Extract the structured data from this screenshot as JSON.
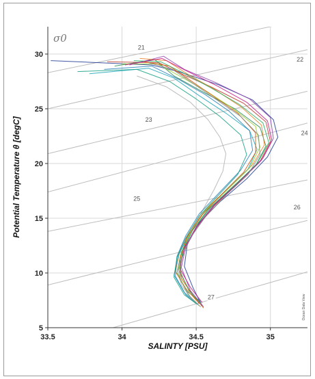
{
  "chart_data": {
    "type": "line",
    "title": "",
    "panel_label": "σ0",
    "xlabel": "SALINTY [PSU]",
    "ylabel": "Potential Temperature θ [degC]",
    "xlim": [
      33.5,
      35.25
    ],
    "ylim": [
      5,
      32.5
    ],
    "x_ticks": [
      33.5,
      34,
      34.5,
      35
    ],
    "x_tick_labels": [
      "33.5",
      "34",
      "34.5",
      "35"
    ],
    "y_ticks": [
      5,
      10,
      15,
      20,
      25,
      30
    ],
    "y_tick_labels": [
      "5",
      "10",
      "15",
      "20",
      "25",
      "30"
    ],
    "grid": true,
    "watermark": "Ocean Data View",
    "density_contours": [
      {
        "label": "21",
        "points": [
          [
            33.5,
            28.3
          ],
          [
            35.25,
            33.2
          ]
        ],
        "label_pos": [
          34.13,
          30.4
        ]
      },
      {
        "label": "22",
        "points": [
          [
            33.5,
            25.0
          ],
          [
            35.25,
            30.4
          ]
        ],
        "label_pos": [
          35.2,
          29.3
        ]
      },
      {
        "label": "23",
        "points": [
          [
            33.5,
            20.9
          ],
          [
            35.25,
            26.6
          ]
        ],
        "label_pos": [
          34.18,
          23.8
        ]
      },
      {
        "label": "24",
        "points": [
          [
            33.5,
            17.4
          ],
          [
            35.25,
            23.7
          ]
        ],
        "label_pos": [
          35.23,
          22.6
        ]
      },
      {
        "label": "25",
        "points": [
          [
            33.5,
            13.8
          ],
          [
            35.25,
            18.5
          ]
        ],
        "label_pos": [
          34.1,
          16.6
        ]
      },
      {
        "label": "26",
        "points": [
          [
            33.5,
            8.9
          ],
          [
            35.25,
            14.8
          ]
        ],
        "label_pos": [
          35.18,
          15.8
        ]
      },
      {
        "label": "27",
        "points": [
          [
            33.94,
            5.0
          ],
          [
            35.25,
            10.1
          ]
        ],
        "label_pos": [
          34.6,
          7.6
        ]
      }
    ],
    "series": [
      {
        "color": "#1f3a93",
        "values": [
          [
            33.52,
            29.4
          ],
          [
            34.2,
            29.0
          ],
          [
            34.38,
            28.4
          ],
          [
            34.65,
            27.2
          ],
          [
            34.88,
            25.8
          ],
          [
            35.02,
            24.0
          ],
          [
            35.05,
            22.4
          ],
          [
            34.98,
            20.6
          ],
          [
            34.84,
            18.6
          ],
          [
            34.66,
            16.5
          ],
          [
            34.52,
            14.6
          ],
          [
            34.44,
            12.6
          ],
          [
            34.42,
            10.6
          ],
          [
            34.48,
            8.6
          ],
          [
            34.54,
            7.0
          ]
        ]
      },
      {
        "color": "#c0392b",
        "values": [
          [
            33.9,
            29.3
          ],
          [
            34.25,
            29.2
          ],
          [
            34.4,
            28.2
          ],
          [
            34.6,
            27.0
          ],
          [
            34.82,
            25.5
          ],
          [
            34.97,
            23.8
          ],
          [
            35.0,
            22.0
          ],
          [
            34.93,
            20.2
          ],
          [
            34.78,
            18.2
          ],
          [
            34.62,
            16.1
          ],
          [
            34.5,
            14.1
          ],
          [
            34.42,
            12.2
          ],
          [
            34.38,
            10.3
          ],
          [
            34.45,
            8.5
          ],
          [
            34.52,
            7.2
          ]
        ]
      },
      {
        "color": "#2e8b57",
        "values": [
          [
            33.95,
            28.9
          ],
          [
            34.22,
            29.5
          ],
          [
            34.35,
            28.0
          ],
          [
            34.55,
            26.5
          ],
          [
            34.76,
            25.0
          ],
          [
            34.93,
            23.3
          ],
          [
            34.97,
            21.6
          ],
          [
            34.9,
            19.8
          ],
          [
            34.74,
            17.8
          ],
          [
            34.58,
            15.8
          ],
          [
            34.47,
            13.8
          ],
          [
            34.4,
            11.9
          ],
          [
            34.37,
            10.0
          ],
          [
            34.44,
            8.3
          ],
          [
            34.53,
            7.4
          ]
        ]
      },
      {
        "color": "#8e44ad",
        "values": [
          [
            34.05,
            29.0
          ],
          [
            34.28,
            29.8
          ],
          [
            34.42,
            28.6
          ],
          [
            34.63,
            27.4
          ],
          [
            34.86,
            25.9
          ],
          [
            35.0,
            24.2
          ],
          [
            35.02,
            22.3
          ],
          [
            34.95,
            20.5
          ],
          [
            34.8,
            18.5
          ],
          [
            34.63,
            16.3
          ],
          [
            34.51,
            14.3
          ],
          [
            34.43,
            12.4
          ],
          [
            34.4,
            10.5
          ],
          [
            34.46,
            8.4
          ],
          [
            34.55,
            6.9
          ]
        ]
      },
      {
        "color": "#e67e22",
        "values": [
          [
            34.12,
            29.6
          ],
          [
            34.3,
            29.4
          ],
          [
            34.45,
            28.1
          ],
          [
            34.62,
            26.8
          ],
          [
            34.8,
            25.2
          ],
          [
            34.94,
            23.5
          ],
          [
            34.96,
            21.7
          ],
          [
            34.88,
            19.9
          ],
          [
            34.73,
            17.9
          ],
          [
            34.57,
            15.9
          ],
          [
            34.46,
            13.9
          ],
          [
            34.39,
            12.0
          ],
          [
            34.36,
            10.1
          ],
          [
            34.43,
            8.6
          ],
          [
            34.5,
            7.5
          ]
        ]
      },
      {
        "color": "#17a2b8",
        "values": [
          [
            33.78,
            28.2
          ],
          [
            34.18,
            28.7
          ],
          [
            34.35,
            27.8
          ],
          [
            34.52,
            26.2
          ],
          [
            34.7,
            24.6
          ],
          [
            34.86,
            23.0
          ],
          [
            34.91,
            21.3
          ],
          [
            34.85,
            19.5
          ],
          [
            34.7,
            17.5
          ],
          [
            34.55,
            15.5
          ],
          [
            34.45,
            13.5
          ],
          [
            34.38,
            11.6
          ],
          [
            34.35,
            9.8
          ],
          [
            34.42,
            8.2
          ],
          [
            34.5,
            7.3
          ]
        ]
      },
      {
        "color": "#9acd32",
        "values": [
          [
            34.0,
            29.1
          ],
          [
            34.24,
            29.1
          ],
          [
            34.4,
            27.9
          ],
          [
            34.57,
            26.6
          ],
          [
            34.74,
            25.1
          ],
          [
            34.9,
            23.4
          ],
          [
            34.93,
            21.5
          ],
          [
            34.86,
            19.6
          ],
          [
            34.71,
            17.6
          ],
          [
            34.56,
            15.7
          ],
          [
            34.46,
            13.7
          ],
          [
            34.4,
            11.8
          ],
          [
            34.38,
            9.9
          ],
          [
            34.44,
            8.1
          ],
          [
            34.52,
            7.0
          ]
        ]
      },
      {
        "color": "#b0b0b0",
        "values": [
          [
            34.1,
            28.0
          ],
          [
            34.3,
            27.0
          ],
          [
            34.46,
            25.6
          ],
          [
            34.58,
            24.0
          ],
          [
            34.66,
            22.4
          ],
          [
            34.7,
            20.9
          ],
          [
            34.68,
            19.3
          ],
          [
            34.62,
            17.6
          ],
          [
            34.55,
            15.9
          ],
          [
            34.48,
            14.1
          ],
          [
            34.42,
            12.3
          ],
          [
            34.38,
            10.5
          ],
          [
            34.4,
            8.9
          ],
          [
            34.47,
            7.6
          ]
        ]
      },
      {
        "color": "#d35400",
        "values": [
          [
            34.15,
            29.3
          ],
          [
            34.32,
            28.9
          ],
          [
            34.46,
            27.6
          ],
          [
            34.62,
            26.1
          ],
          [
            34.78,
            24.6
          ],
          [
            34.9,
            22.8
          ],
          [
            34.9,
            21.0
          ],
          [
            34.82,
            19.2
          ],
          [
            34.68,
            17.3
          ],
          [
            34.54,
            15.3
          ],
          [
            34.44,
            13.3
          ],
          [
            34.39,
            11.3
          ],
          [
            34.4,
            9.5
          ],
          [
            34.48,
            7.9
          ],
          [
            34.55,
            6.8
          ]
        ]
      },
      {
        "color": "#2980b9",
        "values": [
          [
            33.88,
            28.6
          ],
          [
            34.2,
            28.9
          ],
          [
            34.38,
            27.7
          ],
          [
            34.56,
            26.3
          ],
          [
            34.72,
            24.8
          ],
          [
            34.86,
            23.0
          ],
          [
            34.88,
            21.2
          ],
          [
            34.8,
            19.4
          ],
          [
            34.66,
            17.4
          ],
          [
            34.52,
            15.4
          ],
          [
            34.43,
            13.4
          ],
          [
            34.37,
            11.5
          ],
          [
            34.36,
            9.7
          ],
          [
            34.43,
            8.0
          ],
          [
            34.51,
            7.1
          ]
        ]
      },
      {
        "color": "#27ae60",
        "values": [
          [
            34.08,
            29.4
          ],
          [
            34.26,
            29.3
          ],
          [
            34.41,
            28.3
          ],
          [
            34.6,
            26.9
          ],
          [
            34.79,
            25.4
          ],
          [
            34.95,
            23.7
          ],
          [
            34.99,
            21.9
          ],
          [
            34.91,
            20.0
          ],
          [
            34.76,
            18.0
          ],
          [
            34.6,
            16.0
          ],
          [
            34.48,
            14.0
          ],
          [
            34.41,
            12.1
          ],
          [
            34.39,
            10.2
          ],
          [
            34.45,
            8.4
          ],
          [
            34.53,
            7.2
          ]
        ]
      },
      {
        "color": "#c71585",
        "values": [
          [
            34.02,
            29.0
          ],
          [
            34.27,
            29.6
          ],
          [
            34.43,
            28.5
          ],
          [
            34.64,
            27.1
          ],
          [
            34.84,
            25.6
          ],
          [
            34.98,
            23.9
          ],
          [
            35.01,
            22.1
          ],
          [
            34.94,
            20.3
          ],
          [
            34.79,
            18.3
          ],
          [
            34.62,
            16.2
          ],
          [
            34.5,
            14.2
          ],
          [
            34.42,
            12.3
          ],
          [
            34.39,
            10.4
          ],
          [
            34.46,
            8.7
          ],
          [
            34.54,
            7.3
          ]
        ]
      },
      {
        "color": "#16a085",
        "values": [
          [
            33.7,
            28.4
          ],
          [
            34.1,
            28.6
          ],
          [
            34.32,
            27.5
          ],
          [
            34.5,
            25.9
          ],
          [
            34.66,
            24.3
          ],
          [
            34.8,
            22.6
          ],
          [
            34.84,
            20.8
          ],
          [
            34.78,
            19.0
          ],
          [
            34.65,
            17.1
          ],
          [
            34.52,
            15.2
          ],
          [
            34.43,
            13.2
          ],
          [
            34.37,
            11.4
          ],
          [
            34.35,
            9.6
          ],
          [
            34.42,
            8.0
          ],
          [
            34.5,
            7.2
          ]
        ]
      },
      {
        "color": "#7f8c8d",
        "values": [
          [
            34.18,
            29.2
          ],
          [
            34.34,
            28.6
          ],
          [
            34.48,
            27.3
          ],
          [
            34.64,
            25.8
          ],
          [
            34.8,
            24.3
          ],
          [
            34.92,
            22.6
          ],
          [
            34.93,
            20.8
          ],
          [
            34.85,
            19.0
          ],
          [
            34.7,
            17.1
          ],
          [
            34.56,
            15.1
          ],
          [
            34.46,
            13.2
          ],
          [
            34.4,
            11.2
          ],
          [
            34.39,
            9.4
          ],
          [
            34.46,
            7.8
          ],
          [
            34.53,
            6.9
          ]
        ]
      }
    ]
  }
}
